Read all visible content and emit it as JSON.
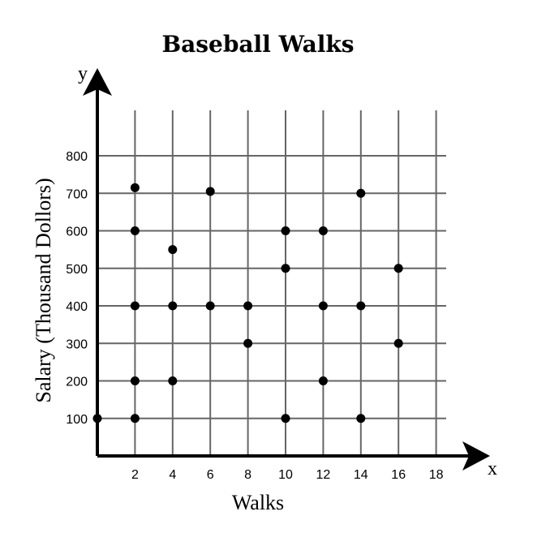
{
  "chart_data": {
    "type": "scatter",
    "title": "Baseball Walks",
    "xlabel": "Walks",
    "ylabel": "Salary (Thousand Dollors)",
    "x_axis_letter": "x",
    "y_axis_letter": "y",
    "xlim": [
      0,
      18
    ],
    "ylim": [
      0,
      800
    ],
    "x_ticks": [
      2,
      4,
      6,
      8,
      10,
      12,
      14,
      16,
      18
    ],
    "y_ticks": [
      100,
      200,
      300,
      400,
      500,
      600,
      700,
      800
    ],
    "grid": true,
    "points": [
      {
        "x": 0,
        "y": 100
      },
      {
        "x": 2,
        "y": 100
      },
      {
        "x": 2,
        "y": 200
      },
      {
        "x": 2,
        "y": 400
      },
      {
        "x": 2,
        "y": 600
      },
      {
        "x": 2,
        "y": 715
      },
      {
        "x": 4,
        "y": 200
      },
      {
        "x": 4,
        "y": 400
      },
      {
        "x": 4,
        "y": 550
      },
      {
        "x": 6,
        "y": 400
      },
      {
        "x": 6,
        "y": 705
      },
      {
        "x": 8,
        "y": 300
      },
      {
        "x": 8,
        "y": 400
      },
      {
        "x": 10,
        "y": 100
      },
      {
        "x": 10,
        "y": 500
      },
      {
        "x": 10,
        "y": 600
      },
      {
        "x": 12,
        "y": 200
      },
      {
        "x": 12,
        "y": 400
      },
      {
        "x": 12,
        "y": 600
      },
      {
        "x": 14,
        "y": 100
      },
      {
        "x": 14,
        "y": 400
      },
      {
        "x": 14,
        "y": 700
      },
      {
        "x": 16,
        "y": 300
      },
      {
        "x": 16,
        "y": 500
      }
    ]
  }
}
